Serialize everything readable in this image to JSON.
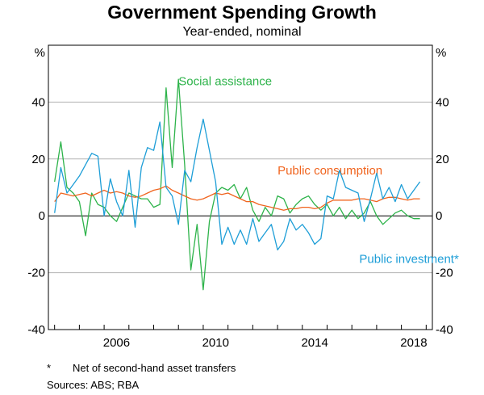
{
  "chart_data": {
    "type": "line",
    "title": "Government Spending Growth",
    "subtitle": "Year-ended, nominal",
    "y_unit_left": "%",
    "y_unit_right": "%",
    "ylim": [
      -40,
      60
    ],
    "yticks": [
      -40,
      -20,
      0,
      20,
      40
    ],
    "ytick_labels": [
      "-40",
      "-20",
      "0",
      "20",
      "40"
    ],
    "xlim": [
      2003.75,
      2019.25
    ],
    "xticks": [
      2006,
      2010,
      2014,
      2018
    ],
    "xtick_labels": [
      "2006",
      "2010",
      "2014",
      "2018"
    ],
    "grid": true,
    "series": [
      {
        "name": "Social assistance",
        "color": "#2db34a",
        "label_year": 2009.0,
        "label_value": 46,
        "x": [
          2004.0,
          2004.25,
          2004.5,
          2004.75,
          2005.0,
          2005.25,
          2005.5,
          2005.75,
          2006.0,
          2006.25,
          2006.5,
          2006.75,
          2007.0,
          2007.25,
          2007.5,
          2007.75,
          2008.0,
          2008.25,
          2008.5,
          2008.75,
          2009.0,
          2009.25,
          2009.5,
          2009.75,
          2010.0,
          2010.25,
          2010.5,
          2010.75,
          2011.0,
          2011.25,
          2011.5,
          2011.75,
          2012.0,
          2012.25,
          2012.5,
          2012.75,
          2013.0,
          2013.25,
          2013.5,
          2013.75,
          2014.0,
          2014.25,
          2014.5,
          2014.75,
          2015.0,
          2015.25,
          2015.5,
          2015.75,
          2016.0,
          2016.25,
          2016.5,
          2016.75,
          2017.0,
          2017.25,
          2017.5,
          2017.75,
          2018.0,
          2018.25,
          2018.5,
          2018.75
        ],
        "values": [
          12,
          26,
          10,
          8,
          5,
          -7,
          8,
          4,
          3,
          0,
          -2,
          3,
          8,
          7,
          6,
          6,
          3,
          4,
          45,
          17,
          48,
          18,
          -19,
          -3,
          -26,
          -2,
          8,
          10,
          9,
          11,
          6,
          10,
          2,
          -2,
          3,
          0,
          7,
          6,
          1,
          4,
          6,
          7,
          4,
          2,
          4,
          0,
          3,
          -1,
          2,
          -1,
          1,
          5,
          0,
          -3,
          -1,
          1,
          2,
          0,
          -1,
          -1
        ]
      },
      {
        "name": "Public consumption",
        "color": "#f0641e",
        "label_year": 2013.0,
        "label_value": 14.5,
        "x": [
          2004.0,
          2004.25,
          2004.5,
          2004.75,
          2005.0,
          2005.25,
          2005.5,
          2005.75,
          2006.0,
          2006.25,
          2006.5,
          2006.75,
          2007.0,
          2007.25,
          2007.5,
          2007.75,
          2008.0,
          2008.25,
          2008.5,
          2008.75,
          2009.0,
          2009.25,
          2009.5,
          2009.75,
          2010.0,
          2010.25,
          2010.5,
          2010.75,
          2011.0,
          2011.25,
          2011.5,
          2011.75,
          2012.0,
          2012.25,
          2012.5,
          2012.75,
          2013.0,
          2013.25,
          2013.5,
          2013.75,
          2014.0,
          2014.25,
          2014.5,
          2014.75,
          2015.0,
          2015.25,
          2015.5,
          2015.75,
          2016.0,
          2016.25,
          2016.5,
          2016.75,
          2017.0,
          2017.25,
          2017.5,
          2017.75,
          2018.0,
          2018.25,
          2018.5,
          2018.75
        ],
        "values": [
          5,
          8,
          7.5,
          7,
          7.5,
          8,
          7,
          8,
          9,
          8,
          8.5,
          8,
          7,
          6.5,
          7,
          8,
          9,
          9.5,
          10.5,
          9,
          8,
          7,
          6,
          5.5,
          6,
          7,
          8,
          7.5,
          8,
          7,
          6,
          5,
          5,
          4,
          3.5,
          3,
          2.5,
          2,
          2.5,
          2.5,
          3,
          3,
          2.5,
          3,
          4.5,
          5.5,
          5.5,
          5.5,
          5.5,
          6,
          6,
          5.5,
          5,
          6,
          6.5,
          6.5,
          6,
          5.5,
          6,
          6
        ]
      },
      {
        "name": "Public investment*",
        "color": "#1e9ed7",
        "label_year": 2016.3,
        "label_value": -16.5,
        "x": [
          2004.0,
          2004.25,
          2004.5,
          2004.75,
          2005.0,
          2005.25,
          2005.5,
          2005.75,
          2006.0,
          2006.25,
          2006.5,
          2006.75,
          2007.0,
          2007.25,
          2007.5,
          2007.75,
          2008.0,
          2008.25,
          2008.5,
          2008.75,
          2009.0,
          2009.25,
          2009.5,
          2009.75,
          2010.0,
          2010.25,
          2010.5,
          2010.75,
          2011.0,
          2011.25,
          2011.5,
          2011.75,
          2012.0,
          2012.25,
          2012.5,
          2012.75,
          2013.0,
          2013.25,
          2013.5,
          2013.75,
          2014.0,
          2014.25,
          2014.5,
          2014.75,
          2015.0,
          2015.25,
          2015.5,
          2015.75,
          2016.0,
          2016.25,
          2016.5,
          2016.75,
          2017.0,
          2017.25,
          2017.5,
          2017.75,
          2018.0,
          2018.25,
          2018.5,
          2018.75
        ],
        "values": [
          1,
          17,
          8,
          11,
          14,
          18,
          22,
          21,
          0,
          13,
          5,
          0,
          16,
          -4,
          17,
          24,
          23,
          33,
          10,
          7,
          -3,
          16,
          12,
          24,
          34,
          23,
          12,
          -10,
          -4,
          -10,
          -5,
          -10,
          -1,
          -9,
          -6,
          -3,
          -12,
          -9,
          -1,
          -5,
          -3,
          -6,
          -10,
          -8,
          7,
          6,
          16,
          10,
          9,
          8,
          -2,
          6,
          15,
          6,
          10,
          5,
          11,
          6,
          9,
          12
        ]
      }
    ],
    "footnote_marker": "*",
    "footnote_text": "Net of second-hand asset transfers",
    "sources": "Sources:   ABS; RBA"
  }
}
